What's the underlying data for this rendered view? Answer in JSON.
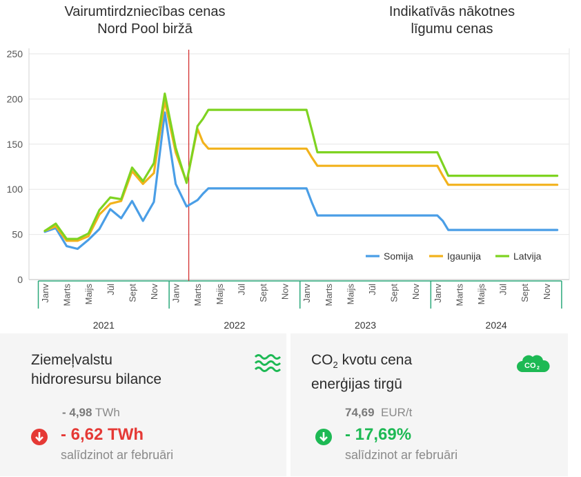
{
  "titles": {
    "left_line1": "Vairumtirdzniecības cenas",
    "left_line2": "Nord Pool biržā",
    "right_line1": "Indikatīvās nākotnes",
    "right_line2": "līgumu cenas"
  },
  "chart_data": {
    "type": "line",
    "ylim": [
      0,
      250
    ],
    "yticks": [
      0,
      50,
      100,
      150,
      200,
      250
    ],
    "grid": true,
    "legend_position": "bottom-right",
    "divider_after_month_index": 14,
    "month_labels": [
      "Janv",
      "Marts",
      "Maijs",
      "Jūl",
      "Sept",
      "Nov",
      "Janv",
      "Marts",
      "Maijs",
      "Jūl",
      "Sept",
      "Nov",
      "Janv",
      "Marts",
      "Maijs",
      "Jūl",
      "Sept",
      "Nov",
      "Janv",
      "Marts",
      "Maijs",
      "Jūl",
      "Sept",
      "Nov"
    ],
    "years": [
      "2021",
      "2022",
      "2023",
      "2024"
    ],
    "x": [
      1,
      2,
      3,
      4,
      5,
      6,
      7,
      8,
      9,
      10,
      11,
      12,
      13,
      14,
      15,
      15.5,
      16,
      17,
      18,
      19,
      20,
      21,
      22,
      23,
      24,
      25,
      25.5,
      26,
      27,
      28,
      29,
      30,
      31,
      32,
      33,
      34,
      35,
      36,
      37,
      37.5,
      38,
      39,
      40,
      41,
      42,
      43,
      44,
      45,
      46,
      47,
      48
    ],
    "series": [
      {
        "name": "Somija",
        "color": "#4a9ee6",
        "values": [
          53,
          57,
          37,
          34,
          44,
          56,
          78,
          68,
          87,
          65,
          86,
          185,
          106,
          81,
          88,
          95,
          101,
          101,
          101,
          101,
          101,
          101,
          101,
          101,
          101,
          101,
          85,
          71,
          71,
          71,
          71,
          71,
          71,
          71,
          71,
          71,
          71,
          71,
          71,
          65,
          55,
          55,
          55,
          55,
          55,
          55,
          55,
          55,
          55,
          55,
          55
        ]
      },
      {
        "name": "Igaunija",
        "color": "#f2b21c",
        "values": [
          54,
          59,
          43,
          43,
          48,
          72,
          84,
          87,
          120,
          106,
          118,
          198,
          141,
          108,
          167,
          152,
          145,
          145,
          145,
          145,
          145,
          145,
          145,
          145,
          145,
          145,
          135,
          126,
          126,
          126,
          126,
          126,
          126,
          126,
          126,
          126,
          126,
          126,
          126,
          115,
          105,
          105,
          105,
          105,
          105,
          105,
          105,
          105,
          105,
          105,
          105
        ]
      },
      {
        "name": "Latvija",
        "color": "#7ed321",
        "values": [
          54,
          62,
          45,
          45,
          51,
          77,
          91,
          89,
          124,
          109,
          129,
          206,
          146,
          107,
          170,
          178,
          188,
          188,
          188,
          188,
          188,
          188,
          188,
          188,
          188,
          188,
          165,
          141,
          141,
          141,
          141,
          141,
          141,
          141,
          141,
          141,
          141,
          141,
          141,
          128,
          115,
          115,
          115,
          115,
          115,
          115,
          115,
          115,
          115,
          115,
          115
        ]
      }
    ]
  },
  "cards": {
    "hydro": {
      "title_line1": "Ziemeļvalstu",
      "title_line2": "hidroresursu bilance",
      "icon": "water-waves-icon",
      "prev_value": "- 4,98",
      "prev_unit": "TWh",
      "change": "- 6,62 TWh",
      "change_color": "#e53935",
      "direction_icon": "arrow-down-icon",
      "subtitle": "salīdzinot ar februāri"
    },
    "co2": {
      "title_line1_pre": "CO",
      "title_sub": "2",
      "title_line1_post": " kvotu cena",
      "title_line2": "enerģijas tirgū",
      "icon": "co2-cloud-icon",
      "icon_text": "CO",
      "icon_sub": "2",
      "prev_value": "74,69",
      "prev_unit": "EUR/t",
      "change": "- 17,69%",
      "change_color": "#1db954",
      "direction_icon": "arrow-down-icon",
      "subtitle": "salīdzinot ar februāri"
    }
  }
}
